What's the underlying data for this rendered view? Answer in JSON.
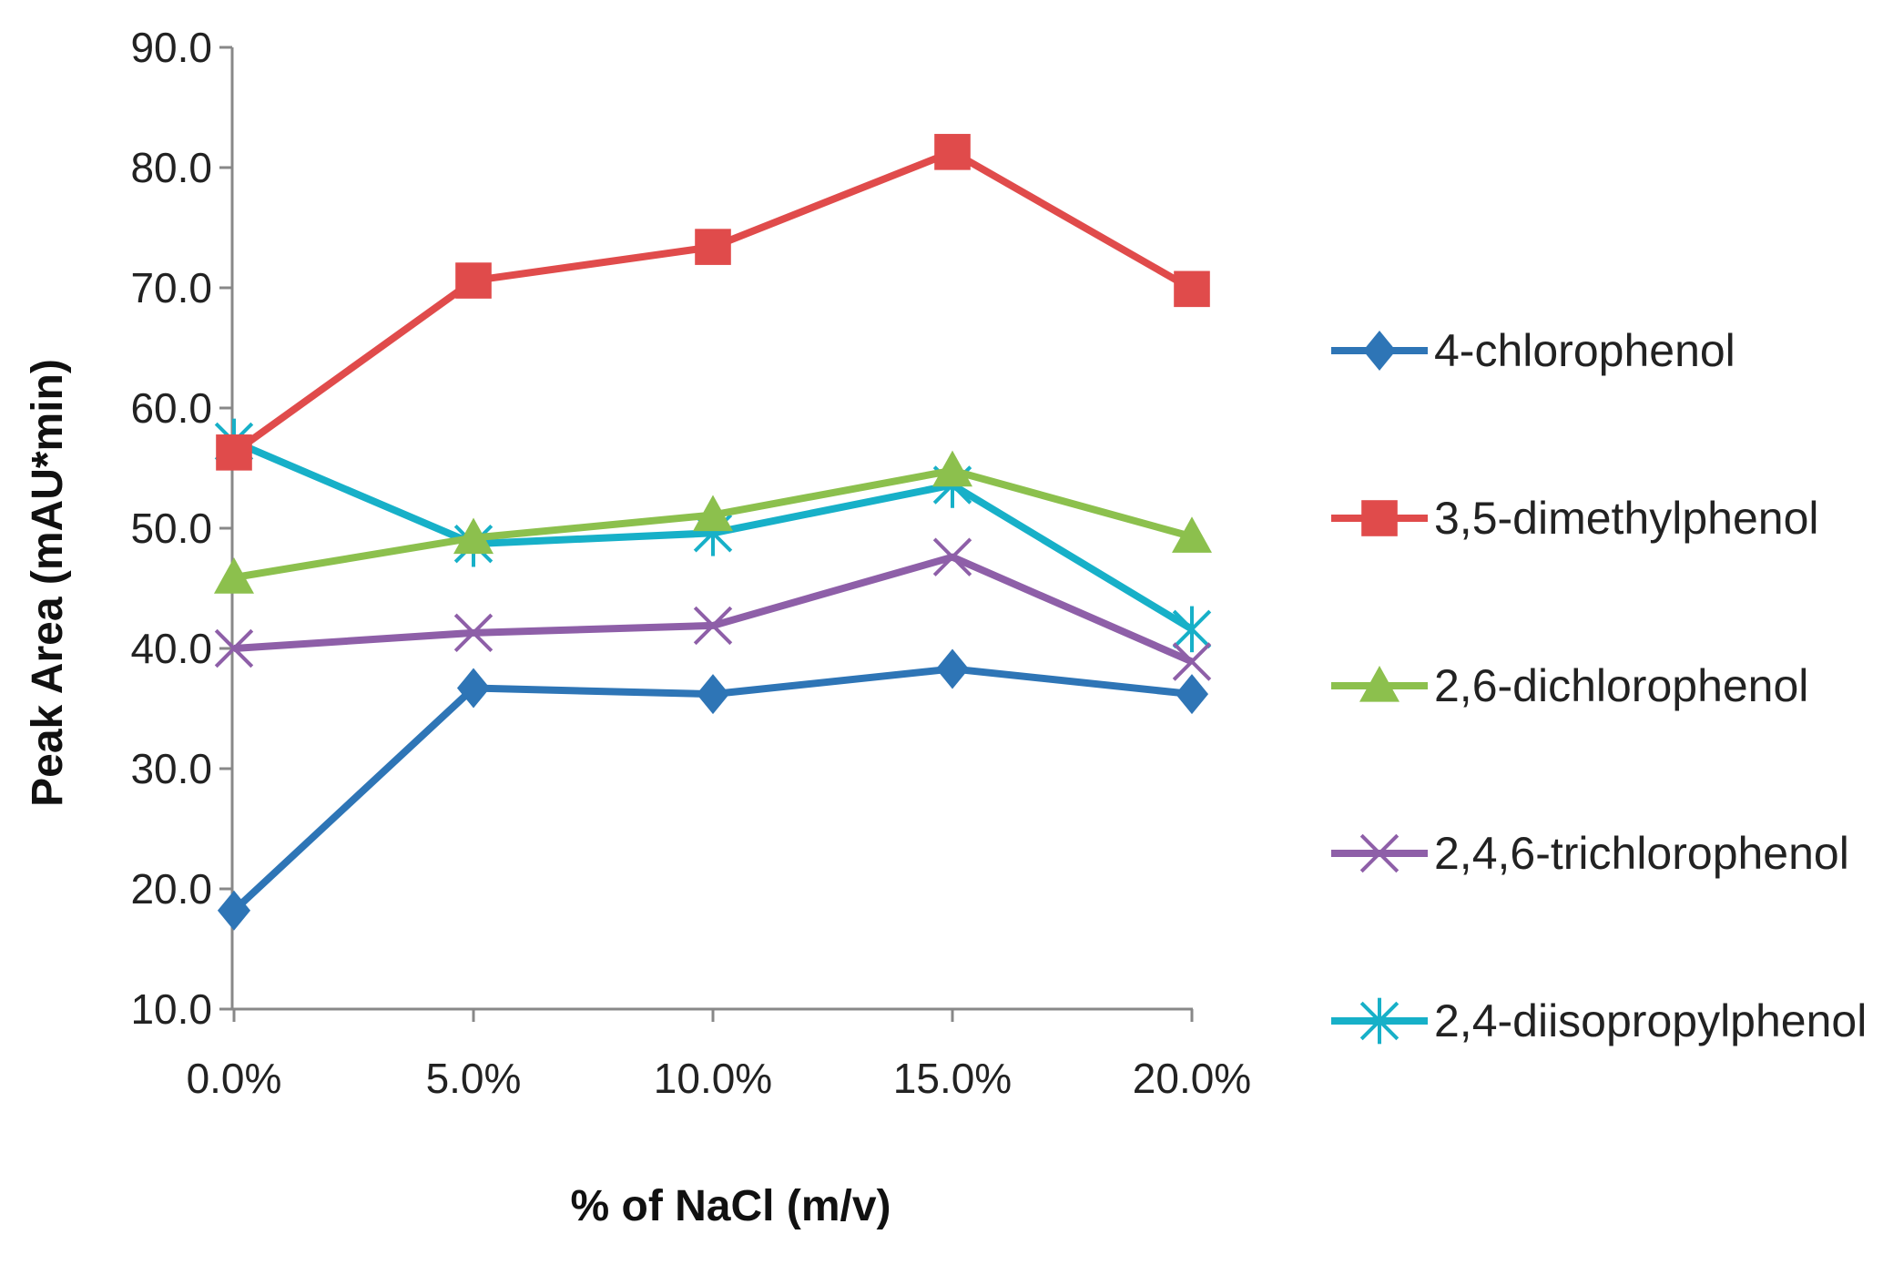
{
  "chart_data": {
    "type": "line",
    "title": "",
    "xlabel": "% of NaCl (m/v)",
    "ylabel": "Peak Area (mAU*min)",
    "categories": [
      "0.0%",
      "5.0%",
      "10.0%",
      "15.0%",
      "20.0%"
    ],
    "ylim": [
      10,
      90
    ],
    "yticks": [
      10,
      20,
      30,
      40,
      50,
      60,
      70,
      80,
      90
    ],
    "ytick_labels": [
      "10.0",
      "20.0",
      "30.0",
      "40.0",
      "50.0",
      "60.0",
      "70.0",
      "80.0",
      "90.0"
    ],
    "grid": false,
    "legend_position": "right",
    "series": [
      {
        "name": "4-chlorophenol",
        "values": [
          18.2,
          36.7,
          36.2,
          38.3,
          36.2
        ],
        "color": "#2E75B6",
        "marker": "diamond"
      },
      {
        "name": "3,5-dimethylphenol",
        "values": [
          56.3,
          70.6,
          73.4,
          81.3,
          69.9
        ],
        "color": "#E04B4B",
        "marker": "square"
      },
      {
        "name": "2,6-dichlorophenol",
        "values": [
          45.9,
          49.2,
          51.1,
          54.8,
          49.3
        ],
        "color": "#8CC04D",
        "marker": "triangle"
      },
      {
        "name": "2,4,6-trichlorophenol",
        "values": [
          40.0,
          41.3,
          41.9,
          47.6,
          38.9
        ],
        "color": "#8E5FA8",
        "marker": "x"
      },
      {
        "name": "2,4-diisopropylphenol",
        "values": [
          57.2,
          48.7,
          49.6,
          53.6,
          41.6
        ],
        "color": "#17B0C8",
        "marker": "star"
      }
    ]
  }
}
